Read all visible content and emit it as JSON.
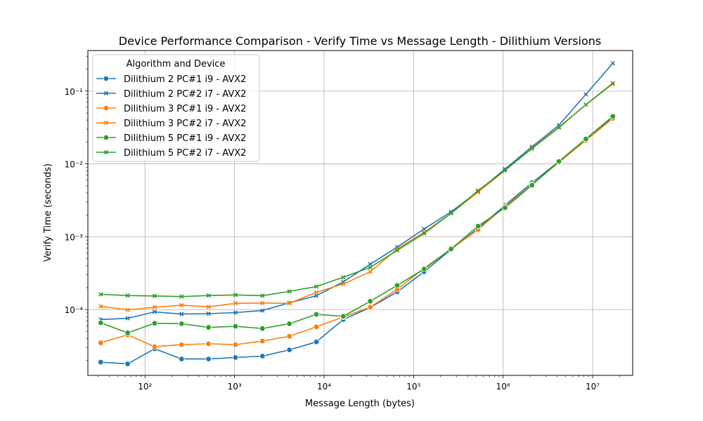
{
  "chart_data": {
    "type": "line",
    "title": "Device Performance Comparison - Verify Time vs Message Length - Dilithium Versions",
    "xlabel": "Message Length (bytes)",
    "ylabel": "Verify Time (seconds)",
    "x_scale": "log",
    "y_scale": "log",
    "xlim": [
      23,
      28000000
    ],
    "ylim": [
      1.25e-05,
      0.36
    ],
    "grid": true,
    "legend_title": "Algorithm and Device",
    "legend_location": "upper left",
    "x_ticks": [
      {
        "value": 100,
        "label": "10²"
      },
      {
        "value": 1000,
        "label": "10³"
      },
      {
        "value": 10000,
        "label": "10⁴"
      },
      {
        "value": 100000,
        "label": "10⁵"
      },
      {
        "value": 1000000,
        "label": "10⁶"
      },
      {
        "value": 10000000,
        "label": "10⁷"
      }
    ],
    "y_ticks": [
      {
        "value": 0.0001,
        "label": "10⁻⁴"
      },
      {
        "value": 0.001,
        "label": "10⁻³"
      },
      {
        "value": 0.01,
        "label": "10⁻²"
      },
      {
        "value": 0.1,
        "label": "10⁻¹"
      }
    ],
    "x": [
      32,
      64,
      128,
      256,
      512,
      1024,
      2048,
      4096,
      8192,
      16384,
      32768,
      65536,
      131072,
      262144,
      524288,
      1048576,
      2097152,
      4194304,
      8388608,
      16777216
    ],
    "series": [
      {
        "name": "Dilithium 2 PC#1 i9 - AVX2",
        "color": "#1f77b4",
        "marker": "circle",
        "values": [
          1.9e-05,
          1.8e-05,
          2.9e-05,
          2.1e-05,
          2.1e-05,
          2.2e-05,
          2.3e-05,
          2.8e-05,
          3.6e-05,
          7.3e-05,
          0.000107,
          0.000175,
          0.00033,
          0.00067,
          0.0013,
          0.0027,
          0.0055,
          0.0108,
          0.022,
          0.043
        ]
      },
      {
        "name": "Dilithium 2 PC#2 i7 - AVX2",
        "color": "#1f77b4",
        "marker": "x",
        "values": [
          7.3e-05,
          7.6e-05,
          9.3e-05,
          8.7e-05,
          8.8e-05,
          9.1e-05,
          9.7e-05,
          0.000124,
          0.000155,
          0.00024,
          0.00042,
          0.00072,
          0.00128,
          0.0022,
          0.0042,
          0.0085,
          0.0172,
          0.034,
          0.09,
          0.24
        ]
      },
      {
        "name": "Dilithium 3 PC#1 i9 - AVX2",
        "color": "#ff7f0e",
        "marker": "circle",
        "values": [
          3.5e-05,
          4.5e-05,
          3.1e-05,
          3.3e-05,
          3.4e-05,
          3.3e-05,
          3.7e-05,
          4.3e-05,
          5.8e-05,
          7.9e-05,
          0.000108,
          0.00019,
          0.00037,
          0.00068,
          0.00125,
          0.0026,
          0.0052,
          0.0105,
          0.021,
          0.042
        ]
      },
      {
        "name": "Dilithium 3 PC#2 i7 - AVX2",
        "color": "#ff7f0e",
        "marker": "x",
        "values": [
          0.000111,
          9.9e-05,
          0.000108,
          0.000115,
          0.000109,
          0.000122,
          0.000123,
          0.000122,
          0.000172,
          0.000225,
          0.00033,
          0.00068,
          0.00115,
          0.0021,
          0.0041,
          0.0081,
          0.0165,
          0.032,
          0.065,
          0.125
        ]
      },
      {
        "name": "Dilithium 5 PC#1 i9 - AVX2",
        "color": "#2ca02c",
        "marker": "circle",
        "values": [
          6.6e-05,
          4.8e-05,
          6.5e-05,
          6.4e-05,
          5.7e-05,
          5.9e-05,
          5.5e-05,
          6.4e-05,
          8.6e-05,
          8.1e-05,
          0.00013,
          0.000215,
          0.00036,
          0.00068,
          0.0014,
          0.0025,
          0.0051,
          0.0108,
          0.022,
          0.045
        ]
      },
      {
        "name": "Dilithium 5 PC#2 i7 - AVX2",
        "color": "#2ca02c",
        "marker": "x",
        "values": [
          0.000162,
          0.000156,
          0.000154,
          0.000151,
          0.000156,
          0.000159,
          0.000155,
          0.000178,
          0.000207,
          0.000278,
          0.00038,
          0.00065,
          0.00111,
          0.0021,
          0.0043,
          0.0082,
          0.0162,
          0.0315,
          0.065,
          0.128
        ]
      }
    ]
  }
}
